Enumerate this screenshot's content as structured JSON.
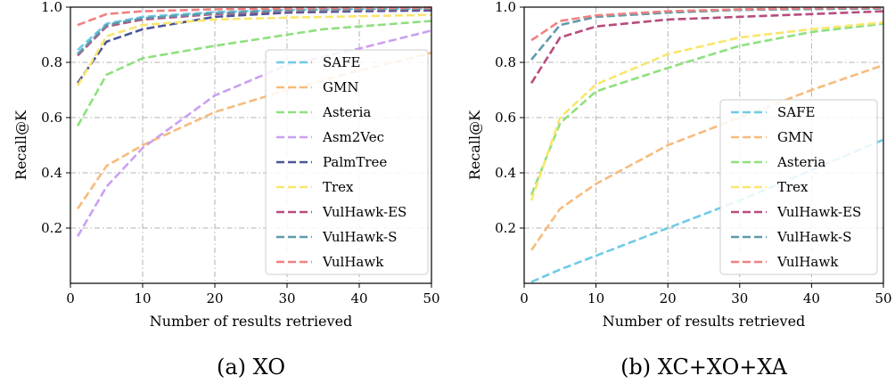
{
  "chart_data": [
    {
      "type": "line",
      "caption": "(a)  XO",
      "xlabel": "Number of results retrieved",
      "ylabel": "Recall@K",
      "xlim": [
        0,
        50
      ],
      "ylim": [
        0,
        1.0
      ],
      "xticks": [
        0,
        10,
        20,
        30,
        40,
        50
      ],
      "yticks": [
        0.2,
        0.4,
        0.6,
        0.8,
        1.0
      ],
      "grid": true,
      "legend_position": "center-right",
      "series": [
        {
          "name": "SAFE",
          "color": "#6fcbe6",
          "x": [
            1,
            5,
            10,
            20,
            30,
            40,
            50
          ],
          "y": [
            0.845,
            0.94,
            0.965,
            0.982,
            0.99,
            0.993,
            0.995
          ]
        },
        {
          "name": "GMN",
          "color": "#f7bb7c",
          "x": [
            1,
            5,
            10,
            20,
            30,
            40,
            50
          ],
          "y": [
            0.27,
            0.425,
            0.5,
            0.62,
            0.7,
            0.77,
            0.835
          ]
        },
        {
          "name": "Asteria",
          "color": "#8ee07e",
          "x": [
            1,
            5,
            10,
            20,
            30,
            35,
            40,
            50
          ],
          "y": [
            0.57,
            0.755,
            0.815,
            0.86,
            0.9,
            0.92,
            0.93,
            0.95
          ]
        },
        {
          "name": "Asm2Vec",
          "color": "#cba0f0",
          "x": [
            1,
            5,
            10,
            20,
            30,
            40,
            50
          ],
          "y": [
            0.17,
            0.35,
            0.49,
            0.68,
            0.79,
            0.85,
            0.915
          ]
        },
        {
          "name": "PalmTree",
          "color": "#4b5597",
          "x": [
            1,
            5,
            10,
            20,
            30,
            40,
            50
          ],
          "y": [
            0.725,
            0.875,
            0.92,
            0.965,
            0.98,
            0.985,
            0.988
          ]
        },
        {
          "name": "Trex",
          "color": "#f9e66c",
          "x": [
            1,
            5,
            10,
            20,
            30,
            40,
            50
          ],
          "y": [
            0.715,
            0.895,
            0.935,
            0.955,
            0.962,
            0.967,
            0.972
          ]
        },
        {
          "name": "VulHawk-ES",
          "color": "#b74c7c",
          "x": [
            1,
            5,
            10,
            20,
            30,
            40,
            50
          ],
          "y": [
            0.825,
            0.93,
            0.955,
            0.975,
            0.985,
            0.99,
            0.993
          ]
        },
        {
          "name": "VulHawk-S",
          "color": "#5e9aab",
          "x": [
            1,
            5,
            10,
            20,
            30,
            40,
            50
          ],
          "y": [
            0.83,
            0.935,
            0.96,
            0.978,
            0.988,
            0.992,
            0.995
          ]
        },
        {
          "name": "VulHawk",
          "color": "#f08080",
          "x": [
            1,
            5,
            10,
            20,
            30,
            40,
            50
          ],
          "y": [
            0.935,
            0.975,
            0.985,
            0.992,
            0.995,
            0.997,
            0.998
          ]
        }
      ]
    },
    {
      "type": "line",
      "caption": "(b)  XC+XO+XA",
      "xlabel": "Number of results retrieved",
      "ylabel": "Recall@K",
      "xlim": [
        0,
        50
      ],
      "ylim": [
        0,
        1.0
      ],
      "xticks": [
        0,
        10,
        20,
        30,
        40,
        50
      ],
      "yticks": [
        0.2,
        0.4,
        0.6,
        0.8,
        1.0
      ],
      "grid": true,
      "legend_position": "lower-right",
      "series": [
        {
          "name": "SAFE",
          "color": "#6fcbe6",
          "x": [
            1,
            5,
            10,
            20,
            30,
            40,
            50
          ],
          "y": [
            0.005,
            0.05,
            0.1,
            0.2,
            0.3,
            0.41,
            0.52
          ]
        },
        {
          "name": "GMN",
          "color": "#f7bb7c",
          "x": [
            1,
            5,
            10,
            20,
            30,
            40,
            50
          ],
          "y": [
            0.12,
            0.27,
            0.36,
            0.5,
            0.6,
            0.7,
            0.79
          ]
        },
        {
          "name": "Asteria",
          "color": "#8ee07e",
          "x": [
            1,
            5,
            10,
            20,
            30,
            40,
            50
          ],
          "y": [
            0.32,
            0.58,
            0.695,
            0.78,
            0.86,
            0.91,
            0.94
          ]
        },
        {
          "name": "Trex",
          "color": "#f9e66c",
          "x": [
            1,
            5,
            10,
            20,
            30,
            40,
            50
          ],
          "y": [
            0.3,
            0.6,
            0.72,
            0.83,
            0.89,
            0.92,
            0.945
          ]
        },
        {
          "name": "VulHawk-ES",
          "color": "#b74c7c",
          "x": [
            1,
            5,
            10,
            20,
            30,
            40,
            50
          ],
          "y": [
            0.725,
            0.89,
            0.93,
            0.955,
            0.965,
            0.975,
            0.985
          ]
        },
        {
          "name": "VulHawk-S",
          "color": "#5e9aab",
          "x": [
            1,
            5,
            10,
            20,
            30,
            40,
            50
          ],
          "y": [
            0.81,
            0.935,
            0.965,
            0.98,
            0.99,
            0.993,
            0.995
          ]
        },
        {
          "name": "VulHawk",
          "color": "#f08080",
          "x": [
            1,
            5,
            10,
            20,
            30,
            40,
            50
          ],
          "y": [
            0.88,
            0.95,
            0.97,
            0.985,
            0.992,
            0.996,
            0.998
          ]
        }
      ]
    }
  ]
}
